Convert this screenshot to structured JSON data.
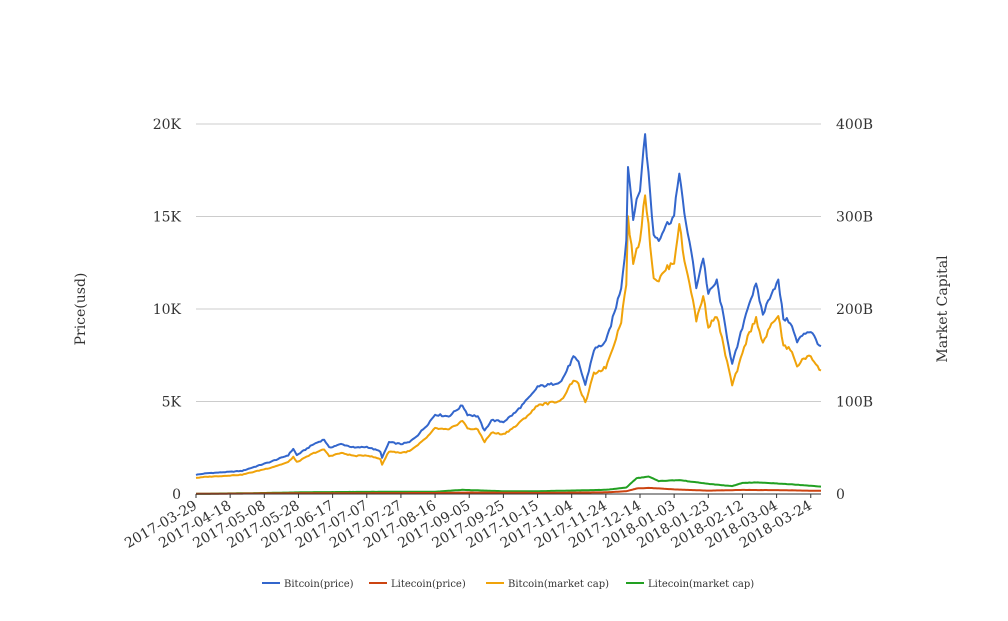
{
  "chart_data": {
    "type": "line",
    "title": "",
    "ylabel_left": "Price(usd)",
    "ylabel_right": "Market Capital",
    "y_left": {
      "range": [
        0,
        20000
      ],
      "ticks": [
        0,
        5000,
        10000,
        15000,
        20000
      ],
      "tick_labels": [
        "0",
        "5K",
        "10K",
        "15K",
        "20K"
      ]
    },
    "y_right": {
      "range": [
        0,
        400000000000
      ],
      "ticks": [
        0,
        100000000000,
        200000000000,
        300000000000,
        400000000000
      ],
      "tick_labels": [
        "0",
        "100B",
        "200B",
        "300B",
        "400B"
      ]
    },
    "x_tick_labels": [
      "2017-03-29",
      "2017-04-18",
      "2017-05-08",
      "2017-05-28",
      "2017-06-17",
      "2017-07-07",
      "2017-07-27",
      "2017-08-16",
      "2017-09-05",
      "2017-09-25",
      "2017-10-15",
      "2017-11-04",
      "2017-11-24",
      "2017-12-14",
      "2018-01-03",
      "2018-01-23",
      "2018-02-12",
      "2018-03-04",
      "2018-03-24"
    ],
    "x_range": [
      "2017-03-29",
      "2018-03-30"
    ],
    "grid": true,
    "legend_position": "bottom",
    "series": [
      {
        "name": "Bitcoin(price)",
        "axis": "left",
        "color": "#3366cc",
        "points": [
          [
            "2017-03-29",
            1040
          ],
          [
            "2017-04-05",
            1130
          ],
          [
            "2017-04-15",
            1180
          ],
          [
            "2017-04-25",
            1250
          ],
          [
            "2017-05-05",
            1550
          ],
          [
            "2017-05-12",
            1750
          ],
          [
            "2017-05-22",
            2100
          ],
          [
            "2017-05-25",
            2450
          ],
          [
            "2017-05-27",
            2100
          ],
          [
            "2017-06-06",
            2700
          ],
          [
            "2017-06-12",
            2950
          ],
          [
            "2017-06-15",
            2500
          ],
          [
            "2017-06-22",
            2700
          ],
          [
            "2017-06-30",
            2500
          ],
          [
            "2017-07-07",
            2550
          ],
          [
            "2017-07-15",
            2300
          ],
          [
            "2017-07-16",
            1950
          ],
          [
            "2017-07-20",
            2800
          ],
          [
            "2017-07-27",
            2700
          ],
          [
            "2017-08-01",
            2800
          ],
          [
            "2017-08-06",
            3200
          ],
          [
            "2017-08-12",
            3800
          ],
          [
            "2017-08-16",
            4300
          ],
          [
            "2017-08-24",
            4200
          ],
          [
            "2017-09-01",
            4800
          ],
          [
            "2017-09-04",
            4300
          ],
          [
            "2017-09-10",
            4200
          ],
          [
            "2017-09-14",
            3400
          ],
          [
            "2017-09-18",
            4000
          ],
          [
            "2017-09-25",
            3900
          ],
          [
            "2017-10-02",
            4400
          ],
          [
            "2017-10-12",
            5400
          ],
          [
            "2017-10-15",
            5800
          ],
          [
            "2017-10-22",
            5900
          ],
          [
            "2017-10-29",
            6100
          ],
          [
            "2017-11-05",
            7400
          ],
          [
            "2017-11-08",
            7100
          ],
          [
            "2017-11-12",
            5900
          ],
          [
            "2017-11-17",
            7800
          ],
          [
            "2017-11-24",
            8200
          ],
          [
            "2017-11-29",
            9800
          ],
          [
            "2017-12-03",
            11200
          ],
          [
            "2017-12-06",
            13700
          ],
          [
            "2017-12-07",
            17800
          ],
          [
            "2017-12-10",
            15000
          ],
          [
            "2017-12-14",
            16500
          ],
          [
            "2017-12-17",
            19500
          ],
          [
            "2017-12-22",
            14000
          ],
          [
            "2017-12-25",
            13800
          ],
          [
            "2017-12-29",
            14500
          ],
          [
            "2018-01-03",
            15000
          ],
          [
            "2018-01-06",
            17500
          ],
          [
            "2018-01-09",
            15000
          ],
          [
            "2018-01-12",
            13700
          ],
          [
            "2018-01-16",
            11200
          ],
          [
            "2018-01-20",
            12800
          ],
          [
            "2018-01-23",
            10800
          ],
          [
            "2018-01-28",
            11500
          ],
          [
            "2018-02-01",
            9500
          ],
          [
            "2018-02-06",
            7000
          ],
          [
            "2018-02-10",
            8300
          ],
          [
            "2018-02-15",
            10100
          ],
          [
            "2018-02-20",
            11300
          ],
          [
            "2018-02-24",
            9700
          ],
          [
            "2018-03-01",
            10900
          ],
          [
            "2018-03-05",
            11500
          ],
          [
            "2018-03-08",
            9500
          ],
          [
            "2018-03-12",
            9300
          ],
          [
            "2018-03-16",
            8200
          ],
          [
            "2018-03-20",
            8700
          ],
          [
            "2018-03-24",
            8800
          ],
          [
            "2018-03-30",
            7900
          ]
        ]
      },
      {
        "name": "Litecoin(price)",
        "axis": "left",
        "color": "#cc4411",
        "points": [
          [
            "2017-03-29",
            8
          ],
          [
            "2017-05-05",
            30
          ],
          [
            "2017-06-05",
            40
          ],
          [
            "2017-07-07",
            45
          ],
          [
            "2017-08-16",
            55
          ],
          [
            "2017-09-05",
            80
          ],
          [
            "2017-10-15",
            60
          ],
          [
            "2017-11-24",
            90
          ],
          [
            "2017-12-06",
            150
          ],
          [
            "2017-12-12",
            300
          ],
          [
            "2017-12-19",
            330
          ],
          [
            "2018-01-03",
            250
          ],
          [
            "2018-01-23",
            180
          ],
          [
            "2018-02-12",
            220
          ],
          [
            "2018-03-04",
            210
          ],
          [
            "2018-03-30",
            170
          ]
        ]
      },
      {
        "name": "Bitcoin(market cap)",
        "axis": "right",
        "color": "#f0a30a",
        "points": [
          [
            "2017-03-29",
            17500000000
          ],
          [
            "2017-04-05",
            18700000000
          ],
          [
            "2017-04-15",
            19600000000
          ],
          [
            "2017-04-25",
            20900000000
          ],
          [
            "2017-05-05",
            25400000000
          ],
          [
            "2017-05-12",
            28600000000
          ],
          [
            "2017-05-22",
            34400000000
          ],
          [
            "2017-05-25",
            40200000000
          ],
          [
            "2017-05-27",
            34400000000
          ],
          [
            "2017-06-06",
            44300000000
          ],
          [
            "2017-06-12",
            48200000000
          ],
          [
            "2017-06-15",
            41000000000
          ],
          [
            "2017-06-22",
            44300000000
          ],
          [
            "2017-06-30",
            41100000000
          ],
          [
            "2017-07-07",
            41900000000
          ],
          [
            "2017-07-15",
            37800000000
          ],
          [
            "2017-07-16",
            31900000000
          ],
          [
            "2017-07-20",
            46200000000
          ],
          [
            "2017-07-27",
            44600000000
          ],
          [
            "2017-08-01",
            46200000000
          ],
          [
            "2017-08-06",
            52800000000
          ],
          [
            "2017-08-12",
            62700000000
          ],
          [
            "2017-08-16",
            71000000000
          ],
          [
            "2017-08-24",
            69300000000
          ],
          [
            "2017-09-01",
            79300000000
          ],
          [
            "2017-09-04",
            71000000000
          ],
          [
            "2017-09-10",
            69600000000
          ],
          [
            "2017-09-14",
            56400000000
          ],
          [
            "2017-09-18",
            66300000000
          ],
          [
            "2017-09-25",
            64600000000
          ],
          [
            "2017-10-02",
            73000000000
          ],
          [
            "2017-10-12",
            89600000000
          ],
          [
            "2017-10-15",
            96300000000
          ],
          [
            "2017-10-22",
            98200000000
          ],
          [
            "2017-10-29",
            101500000000
          ],
          [
            "2017-11-05",
            123300000000
          ],
          [
            "2017-11-08",
            118200000000
          ],
          [
            "2017-11-12",
            98300000000
          ],
          [
            "2017-11-17",
            130100000000
          ],
          [
            "2017-11-24",
            136800000000
          ],
          [
            "2017-11-29",
            163700000000
          ],
          [
            "2017-12-03",
            187000000000
          ],
          [
            "2017-12-06",
            228800000000
          ],
          [
            "2017-12-07",
            297600000000
          ],
          [
            "2017-12-10",
            250800000000
          ],
          [
            "2017-12-14",
            275900000000
          ],
          [
            "2017-12-17",
            326000000000
          ],
          [
            "2017-12-22",
            234000000000
          ],
          [
            "2017-12-25",
            231000000000
          ],
          [
            "2017-12-29",
            242700000000
          ],
          [
            "2018-01-03",
            251100000000
          ],
          [
            "2018-01-06",
            293000000000
          ],
          [
            "2018-01-09",
            251300000000
          ],
          [
            "2018-01-12",
            229500000000
          ],
          [
            "2018-01-16",
            187700000000
          ],
          [
            "2018-01-20",
            214600000000
          ],
          [
            "2018-01-23",
            181100000000
          ],
          [
            "2018-01-28",
            192900000000
          ],
          [
            "2018-02-01",
            159400000000
          ],
          [
            "2018-02-06",
            117600000000
          ],
          [
            "2018-02-10",
            139400000000
          ],
          [
            "2018-02-15",
            169800000000
          ],
          [
            "2018-02-20",
            190000000000
          ],
          [
            "2018-02-24",
            163100000000
          ],
          [
            "2018-03-01",
            183300000000
          ],
          [
            "2018-03-05",
            193600000000
          ],
          [
            "2018-03-08",
            160000000000
          ],
          [
            "2018-03-12",
            156600000000
          ],
          [
            "2018-03-16",
            138200000000
          ],
          [
            "2018-03-20",
            146700000000
          ],
          [
            "2018-03-24",
            148500000000
          ],
          [
            "2018-03-30",
            133400000000
          ]
        ]
      },
      {
        "name": "Litecoin(market cap)",
        "axis": "right",
        "color": "#22a022",
        "points": [
          [
            "2017-03-29",
            200000000
          ],
          [
            "2017-05-05",
            1000000000
          ],
          [
            "2017-06-05",
            2000000000
          ],
          [
            "2017-07-07",
            2300000000
          ],
          [
            "2017-08-16",
            2500000000
          ],
          [
            "2017-09-01",
            4500000000
          ],
          [
            "2017-09-25",
            3000000000
          ],
          [
            "2017-10-15",
            3000000000
          ],
          [
            "2017-11-24",
            4500000000
          ],
          [
            "2017-12-06",
            7000000000
          ],
          [
            "2017-12-12",
            17000000000
          ],
          [
            "2017-12-19",
            19000000000
          ],
          [
            "2017-12-25",
            14000000000
          ],
          [
            "2018-01-06",
            15000000000
          ],
          [
            "2018-01-23",
            11000000000
          ],
          [
            "2018-02-06",
            8500000000
          ],
          [
            "2018-02-12",
            12000000000
          ],
          [
            "2018-02-20",
            12500000000
          ],
          [
            "2018-03-04",
            11500000000
          ],
          [
            "2018-03-20",
            9500000000
          ],
          [
            "2018-03-30",
            8000000000
          ]
        ]
      }
    ]
  }
}
